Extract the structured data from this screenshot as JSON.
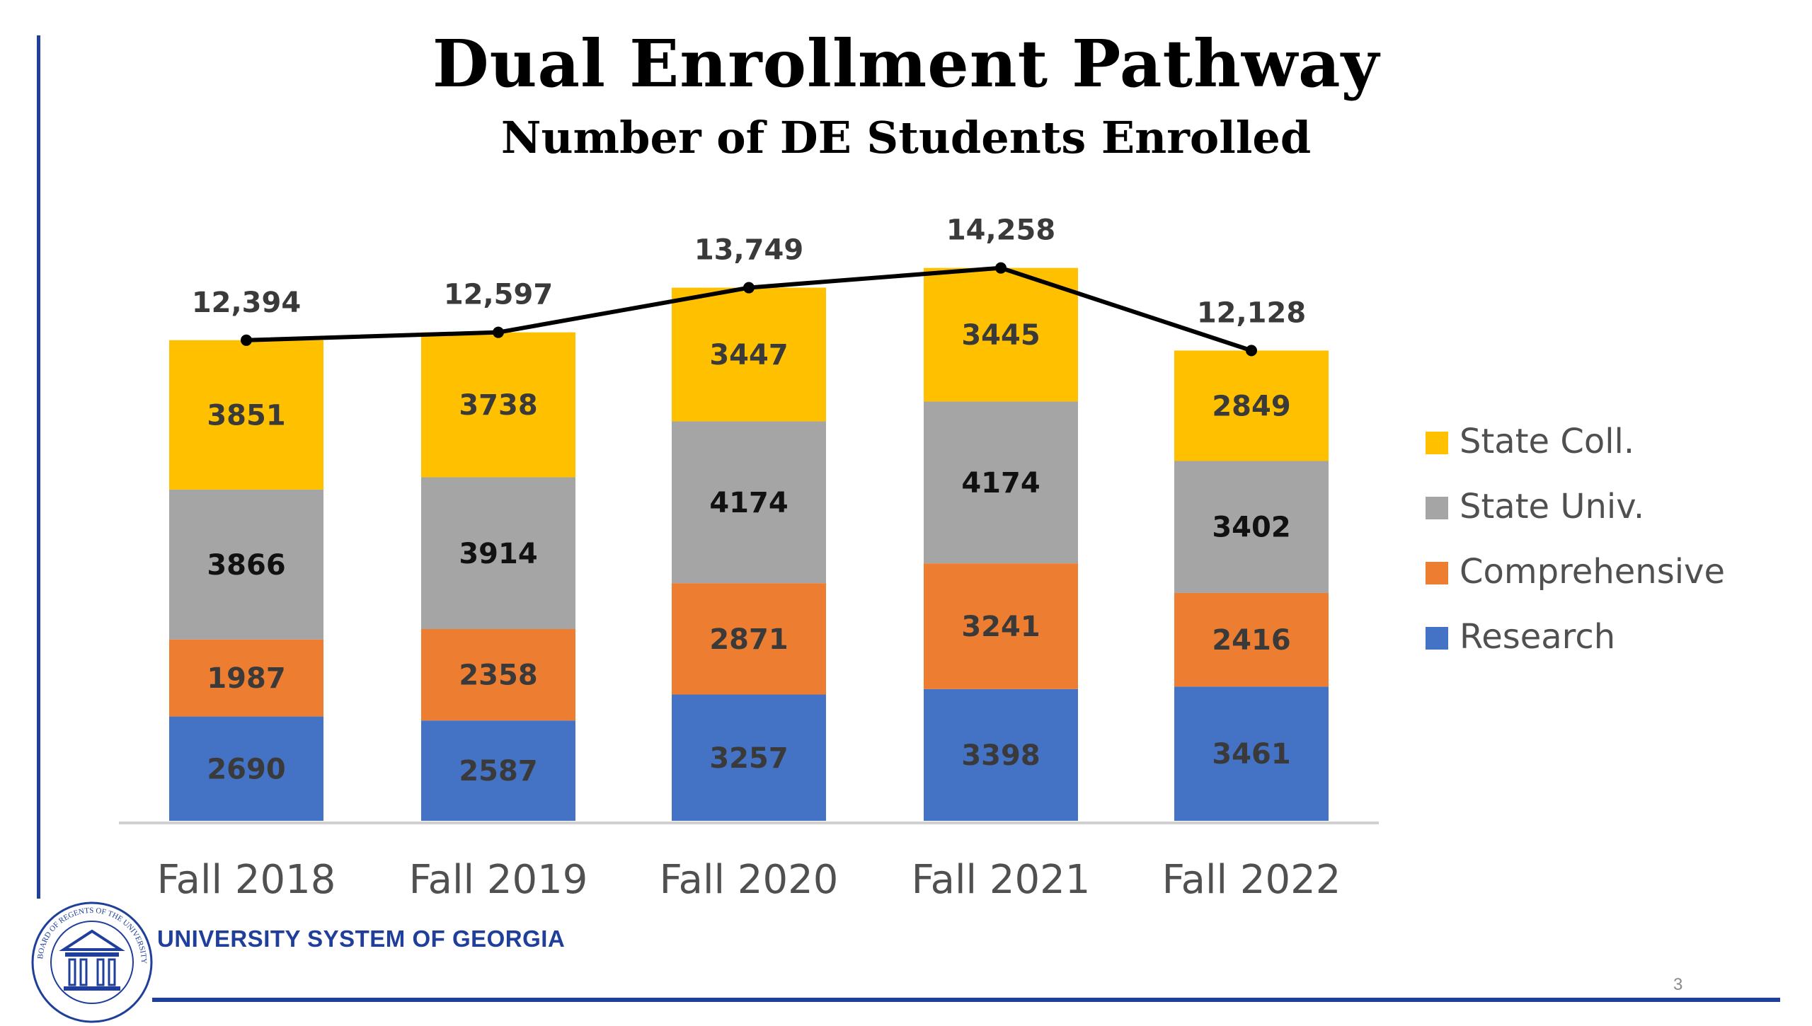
{
  "slide": {
    "title": "Dual Enrollment Pathway",
    "subtitle": "Number of DE Students Enrolled",
    "org_name": "UNIVERSITY SYSTEM OF GEORGIA",
    "page_number": "3",
    "seal_text": "BOARD OF REGENTS OF THE UNIVERSITY SYSTEM OF GEORGIA",
    "brand_color": "#1f3f9a"
  },
  "chart_data": {
    "type": "bar",
    "stacked": true,
    "categories": [
      "Fall 2018",
      "Fall 2019",
      "Fall 2020",
      "Fall 2021",
      "Fall 2022"
    ],
    "series": [
      {
        "name": "Research",
        "color": "#4472c4",
        "values": [
          2690,
          2587,
          3257,
          3398,
          3461
        ]
      },
      {
        "name": "Comprehensive",
        "color": "#ed7d31",
        "values": [
          1987,
          2358,
          2871,
          3241,
          2416
        ]
      },
      {
        "name": "State Univ.",
        "color": "#a5a5a5",
        "values": [
          3866,
          3914,
          4174,
          4174,
          3402
        ]
      },
      {
        "name": "State Coll.",
        "color": "#ffc000",
        "values": [
          3851,
          3738,
          3447,
          3445,
          2849
        ]
      }
    ],
    "totals": {
      "type": "line",
      "values": [
        12394,
        12597,
        13749,
        14258,
        12128
      ],
      "labels": [
        "12,394",
        "12,597",
        "13,749",
        "14,258",
        "12,128"
      ],
      "color": "#000000"
    },
    "ylim": [
      0,
      16000
    ],
    "grid": false,
    "legend": {
      "position": "right",
      "order": [
        "State Coll.",
        "State Univ.",
        "Comprehensive",
        "Research"
      ]
    }
  }
}
